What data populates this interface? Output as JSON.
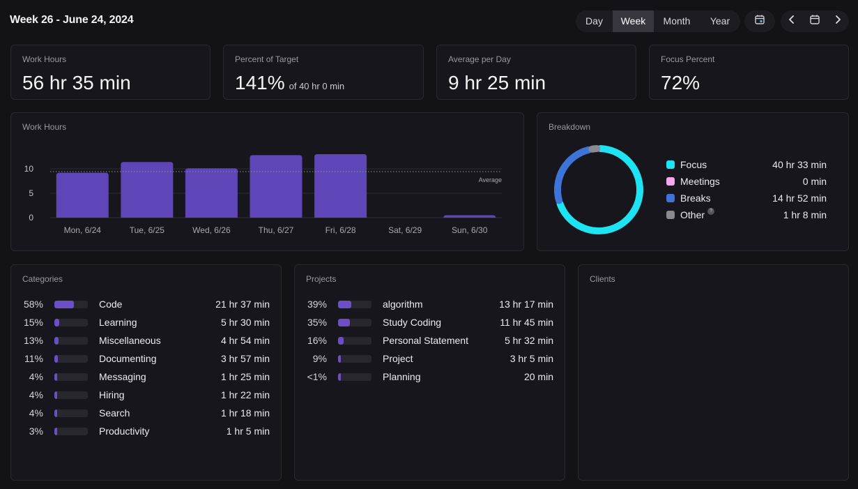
{
  "header": {
    "title": "Week 26 - June 24, 2024",
    "ranges": [
      "Day",
      "Week",
      "Month",
      "Year"
    ],
    "active_range": "Week",
    "icons": [
      "calendar-today-icon",
      "chevron-left-icon",
      "calendar-icon",
      "chevron-right-icon"
    ]
  },
  "stats": {
    "work_hours": {
      "label": "Work Hours",
      "value": "56 hr 35 min"
    },
    "percent_target": {
      "label": "Percent of Target",
      "value": "141%",
      "sub": "of 40 hr 0 min"
    },
    "avg_per_day": {
      "label": "Average per Day",
      "value": "9 hr 25 min"
    },
    "focus_percent": {
      "label": "Focus Percent",
      "value": "72%"
    }
  },
  "work_hours_chart": {
    "label": "Work Hours",
    "average_label": "Average"
  },
  "chart_data": {
    "type": "bar",
    "categories": [
      "Mon, 6/24",
      "Tue, 6/25",
      "Wed, 6/26",
      "Thu, 6/27",
      "Fri, 6/28",
      "Sat, 6/29",
      "Sun, 6/30"
    ],
    "values": [
      9.2,
      11.4,
      10.1,
      12.8,
      13.0,
      0,
      0.5
    ],
    "average": 9.42,
    "yticks": [
      0,
      5,
      10
    ],
    "ylim": [
      0,
      13.5
    ],
    "grid": true,
    "bar_color": "#5e45b8"
  },
  "breakdown": {
    "label": "Breakdown",
    "items": [
      {
        "name": "Focus",
        "value": "40 hr 33 min",
        "color": "#1ee3f2",
        "minutes": 2433
      },
      {
        "name": "Meetings",
        "value": "0 min",
        "color": "#f4a6ee",
        "minutes": 0
      },
      {
        "name": "Breaks",
        "value": "14 hr 52 min",
        "color": "#3e73d8",
        "minutes": 892
      },
      {
        "name": "Other",
        "value": "1 hr 8 min",
        "color": "#8a8990",
        "minutes": 68,
        "help": "?"
      }
    ]
  },
  "categories": {
    "label": "Categories",
    "items": [
      {
        "pct": "58%",
        "name": "Code",
        "value": "21 hr 37 min",
        "fill": 0.58
      },
      {
        "pct": "15%",
        "name": "Learning",
        "value": "5 hr 30 min",
        "fill": 0.15
      },
      {
        "pct": "13%",
        "name": "Miscellaneous",
        "value": "4 hr 54 min",
        "fill": 0.13
      },
      {
        "pct": "11%",
        "name": "Documenting",
        "value": "3 hr 57 min",
        "fill": 0.11
      },
      {
        "pct": "4%",
        "name": "Messaging",
        "value": "1 hr 25 min",
        "fill": 0.04
      },
      {
        "pct": "4%",
        "name": "Hiring",
        "value": "1 hr 22 min",
        "fill": 0.04
      },
      {
        "pct": "4%",
        "name": "Search",
        "value": "1 hr 18 min",
        "fill": 0.04
      },
      {
        "pct": "3%",
        "name": "Productivity",
        "value": "1 hr 5 min",
        "fill": 0.03
      }
    ]
  },
  "projects": {
    "label": "Projects",
    "items": [
      {
        "pct": "39%",
        "name": "algorithm",
        "value": "13 hr 17 min",
        "fill": 0.39
      },
      {
        "pct": "35%",
        "name": "Study Coding",
        "value": "11 hr 45 min",
        "fill": 0.35
      },
      {
        "pct": "16%",
        "name": "Personal Statement",
        "value": "5 hr 32 min",
        "fill": 0.16
      },
      {
        "pct": "9%",
        "name": "Project",
        "value": "3 hr 5 min",
        "fill": 0.09
      },
      {
        "pct": "<1%",
        "name": "Planning",
        "value": "20 min",
        "fill": 0.01
      }
    ]
  },
  "clients": {
    "label": "Clients",
    "items": []
  }
}
